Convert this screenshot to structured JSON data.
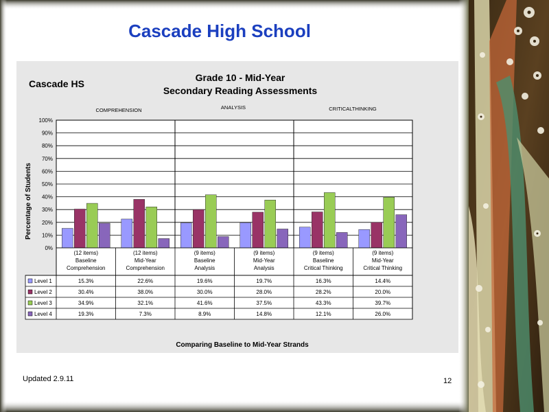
{
  "slide_title": "Cascade High School",
  "school_label": "Cascade HS",
  "footer": "Updated  2.9.11",
  "page_number": "12",
  "chart_data": {
    "type": "bar",
    "title": "Grade 10 - Mid-Year",
    "subtitle": "Secondary Reading Assessments",
    "ylabel": "Percentage of Students",
    "xlabel": "Comparing Baseline to Mid-Year Strands",
    "ylim": [
      0,
      100
    ],
    "y_ticks": [
      "0%",
      "10%",
      "20%",
      "30%",
      "40%",
      "50%",
      "60%",
      "70%",
      "80%",
      "90%",
      "100%"
    ],
    "groups": [
      "COMPREHENSION",
      "ANALYSIS",
      "CRITICALTHINKING"
    ],
    "categories": [
      [
        "(12 items)",
        "Baseline",
        "Comprehension"
      ],
      [
        "(12 items)",
        "Mid-Year",
        "Comprehension"
      ],
      [
        "(9 items)",
        "Baseline",
        "Analysis"
      ],
      [
        "(9 items)",
        "Mid-Year",
        "Analysis"
      ],
      [
        "(9 items)",
        "Baseline",
        "Critical Thinking"
      ],
      [
        "(9 items)",
        "Mid-Year",
        "Critical Thinking"
      ]
    ],
    "series": [
      {
        "name": "Level 1",
        "color": "#9999ff",
        "values": [
          15.3,
          22.6,
          19.6,
          19.7,
          16.3,
          14.4
        ],
        "labels": [
          "15.3%",
          "22.6%",
          "19.6%",
          "19.7%",
          "16.3%",
          "14.4%"
        ]
      },
      {
        "name": "Level 2",
        "color": "#993366",
        "values": [
          30.4,
          38.0,
          30.0,
          28.0,
          28.2,
          20.0
        ],
        "labels": [
          "30.4%",
          "38.0%",
          "30.0%",
          "28.0%",
          "28.2%",
          "20.0%"
        ]
      },
      {
        "name": "Level 3",
        "color": "#99cc55",
        "values": [
          34.9,
          32.1,
          41.6,
          37.5,
          43.3,
          39.7
        ],
        "labels": [
          "34.9%",
          "32.1%",
          "41.6%",
          "37.5%",
          "43.3%",
          "39.7%"
        ]
      },
      {
        "name": "Level 4",
        "color": "#8866bb",
        "values": [
          19.3,
          7.3,
          8.9,
          14.8,
          12.1,
          26.0
        ],
        "labels": [
          "19.3%",
          "7.3%",
          "8.9%",
          "14.8%",
          "12.1%",
          "26.0%"
        ]
      }
    ],
    "grid": true,
    "legend": "data-table"
  }
}
